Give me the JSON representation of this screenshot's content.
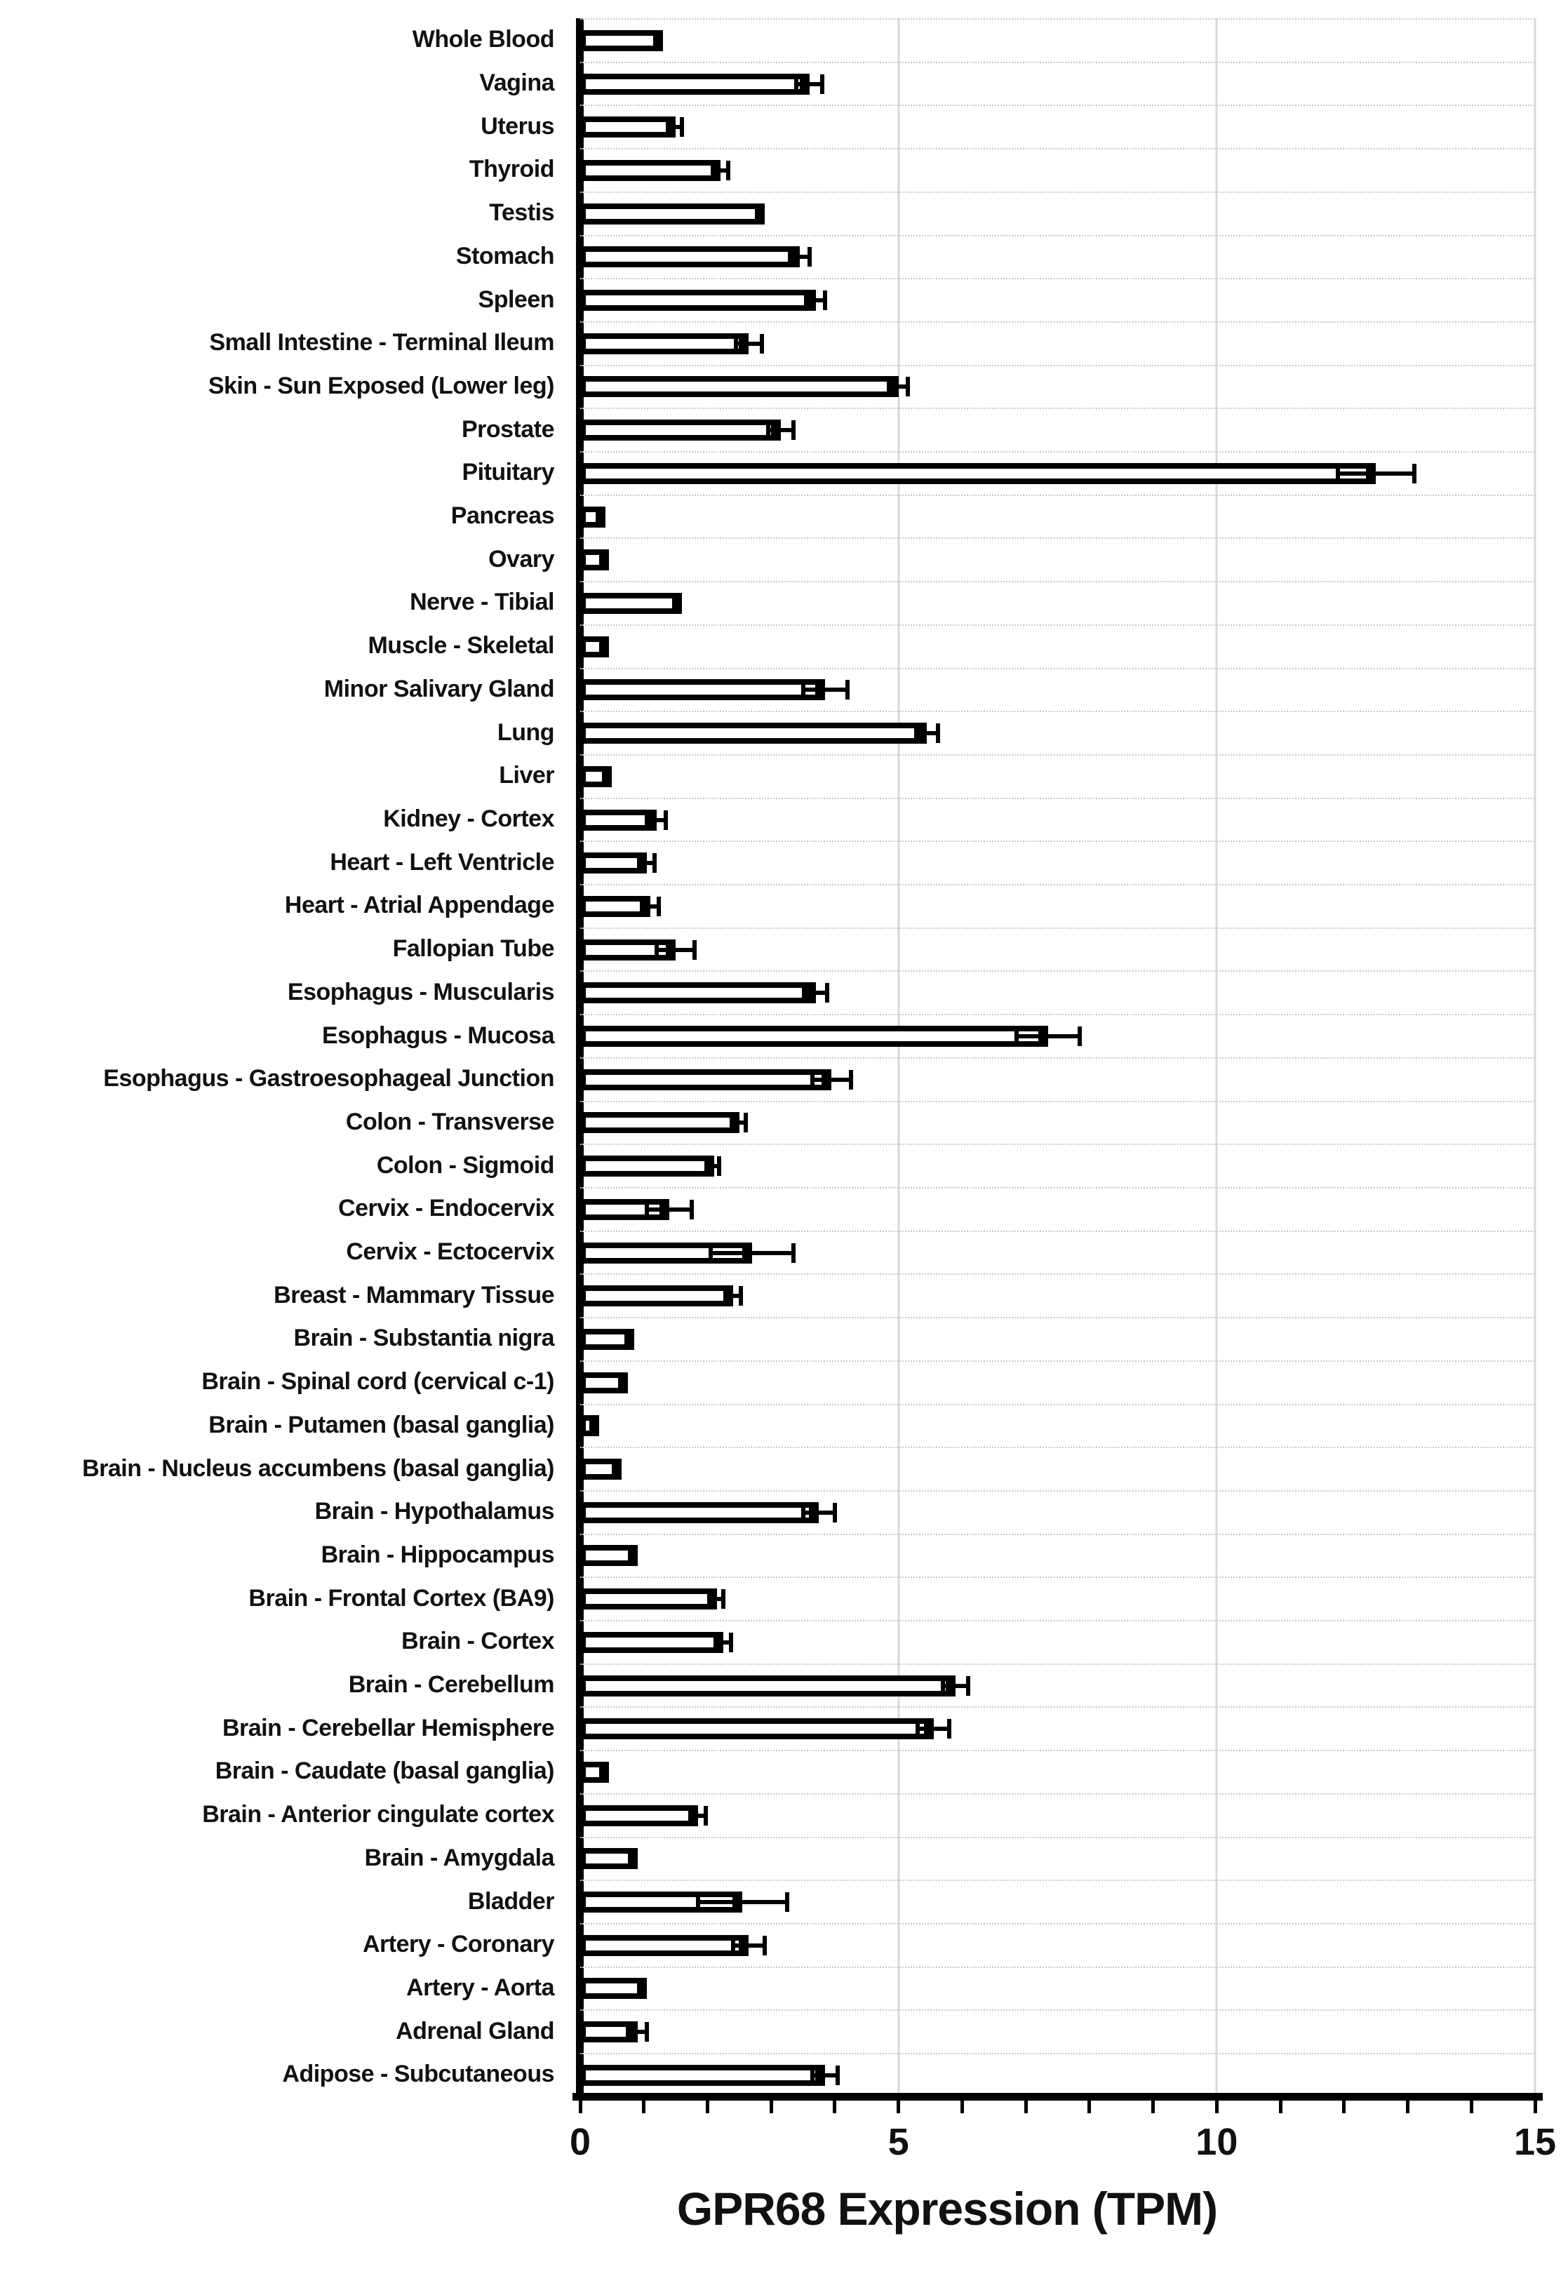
{
  "chart_data": {
    "type": "bar",
    "orientation": "horizontal",
    "xlabel": "GPR68 Expression (TPM)",
    "xlim": [
      0,
      15
    ],
    "xticks_labeled": [
      0,
      5,
      10,
      15
    ],
    "xtick_minor_step": 1,
    "grid": "vertical gridlines at 5, 10 and 15; dotted gray horizontal separators between category rows",
    "legend": "none",
    "error_bars": "horizontal, with end caps",
    "categories": [
      "Whole Blood",
      "Vagina",
      "Uterus",
      "Thyroid",
      "Testis",
      "Stomach",
      "Spleen",
      "Small Intestine - Terminal Ileum",
      "Skin - Sun Exposed (Lower leg)",
      "Prostate",
      "Pituitary",
      "Pancreas",
      "Ovary",
      "Nerve - Tibial",
      "Muscle - Skeletal",
      "Minor Salivary Gland",
      "Lung",
      "Liver",
      "Kidney - Cortex",
      "Heart - Left Ventricle",
      "Heart - Atrial Appendage",
      "Fallopian Tube",
      "Esophagus - Muscularis",
      "Esophagus - Mucosa",
      "Esophagus - Gastroesophageal Junction",
      "Colon - Transverse",
      "Colon - Sigmoid",
      "Cervix - Endocervix",
      "Cervix - Ectocervix",
      "Breast - Mammary Tissue",
      "Brain - Substantia nigra",
      "Brain - Spinal cord (cervical c-1)",
      "Brain - Putamen (basal ganglia)",
      "Brain - Nucleus accumbens (basal ganglia)",
      "Brain - Hypothalamus",
      "Brain - Hippocampus",
      "Brain - Frontal Cortex (BA9)",
      "Brain - Cortex",
      "Brain - Cerebellum",
      "Brain - Cerebellar Hemisphere",
      "Brain - Caudate (basal ganglia)",
      "Brain - Anterior cingulate cortex",
      "Brain - Amygdala",
      "Bladder",
      "Artery - Coronary",
      "Artery - Aorta",
      "Adrenal Gland",
      "Adipose - Subcutaneous"
    ],
    "values": [
      1.3,
      3.6,
      1.5,
      2.2,
      2.9,
      3.45,
      3.7,
      2.65,
      5.0,
      3.15,
      12.5,
      0.4,
      0.45,
      1.6,
      0.45,
      3.85,
      5.45,
      0.5,
      1.2,
      1.05,
      1.1,
      1.5,
      3.7,
      7.35,
      3.95,
      2.5,
      2.1,
      1.4,
      2.7,
      2.4,
      0.85,
      0.75,
      0.3,
      0.65,
      3.75,
      0.9,
      2.15,
      2.25,
      5.9,
      5.55,
      0.45,
      1.85,
      0.9,
      2.55,
      2.65,
      1.05,
      0.9,
      3.85
    ],
    "errors": [
      0,
      0.2,
      0.1,
      0.12,
      0,
      0.15,
      0.15,
      0.2,
      0.15,
      0.2,
      0.6,
      0,
      0,
      0,
      0,
      0.35,
      0.17,
      0,
      0.15,
      0.12,
      0.13,
      0.3,
      0.18,
      0.5,
      0.3,
      0.1,
      0.08,
      0.35,
      0.65,
      0.12,
      0,
      0,
      0,
      0,
      0.25,
      0,
      0.1,
      0.12,
      0.2,
      0.25,
      0,
      0.12,
      0,
      0.7,
      0.25,
      0,
      0.15,
      0.2
    ]
  },
  "colors": {
    "background": "#ffffff",
    "bar_fill": "#ffffff",
    "bar_border": "#000000",
    "axis": "#000000",
    "gridline": "#d8d8d8",
    "row_separator": "#c9c9c9",
    "text": "#111111"
  }
}
